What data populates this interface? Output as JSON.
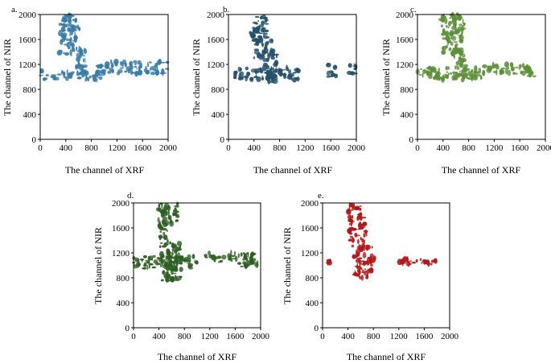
{
  "figure": {
    "panels": [
      {
        "panel_label": "a.",
        "color": "#3a7ca5",
        "chart_data": {
          "type": "heatmap",
          "title": "a.",
          "xlabel": "The channel of XRF",
          "ylabel": "The channel of NIR",
          "xlim": [
            0,
            2000
          ],
          "ylim": [
            0,
            2000
          ],
          "xticks": [
            0,
            400,
            800,
            1200,
            1600,
            2000
          ],
          "yticks": [
            0,
            400,
            800,
            1200,
            1600,
            2000
          ],
          "regions": [
            {
              "x": [
                280,
                620
              ],
              "y": [
                1700,
                2000
              ]
            },
            {
              "x": [
                300,
                560
              ],
              "y": [
                1350,
                1700
              ]
            },
            {
              "x": [
                560,
                740
              ],
              "y": [
                1000,
                1500
              ]
            },
            {
              "x": [
                0,
                1000
              ],
              "y": [
                950,
                1100
              ]
            },
            {
              "x": [
                900,
                1900
              ],
              "y": [
                1050,
                1250
              ]
            },
            {
              "x": [
                1900,
                2000
              ],
              "y": [
                1050,
                1250
              ]
            }
          ]
        }
      },
      {
        "panel_label": "b.",
        "color": "#24506a",
        "chart_data": {
          "type": "heatmap",
          "title": "b.",
          "xlabel": "The channel of XRF",
          "ylabel": "The channel of NIR",
          "xlim": [
            0,
            2000
          ],
          "ylim": [
            0,
            2000
          ],
          "xticks": [
            0,
            400,
            800,
            1200,
            1600,
            2000
          ],
          "yticks": [
            0,
            400,
            800,
            1200,
            1600,
            2000
          ],
          "regions": [
            {
              "x": [
                340,
                600
              ],
              "y": [
                1650,
                2000
              ]
            },
            {
              "x": [
                400,
                700
              ],
              "y": [
                1300,
                1650
              ]
            },
            {
              "x": [
                560,
                760
              ],
              "y": [
                900,
                1450
              ]
            },
            {
              "x": [
                100,
                1100
              ],
              "y": [
                950,
                1150
              ]
            },
            {
              "x": [
                1550,
                1700
              ],
              "y": [
                1000,
                1200
              ]
            },
            {
              "x": [
                1850,
                2000
              ],
              "y": [
                1050,
                1200
              ]
            }
          ]
        }
      },
      {
        "panel_label": "c.",
        "color": "#5e8f3a",
        "chart_data": {
          "type": "heatmap",
          "title": "c.",
          "xlabel": "The channel of XRF",
          "ylabel": "The channel of NIR",
          "xlim": [
            0,
            2000
          ],
          "ylim": [
            0,
            2000
          ],
          "xticks": [
            0,
            400,
            800,
            1200,
            1600,
            2000
          ],
          "yticks": [
            0,
            400,
            800,
            1200,
            1600,
            2000
          ],
          "regions": [
            {
              "x": [
                360,
                740
              ],
              "y": [
                1700,
                2000
              ]
            },
            {
              "x": [
                400,
                700
              ],
              "y": [
                1350,
                1700
              ]
            },
            {
              "x": [
                560,
                760
              ],
              "y": [
                950,
                1450
              ]
            },
            {
              "x": [
                0,
                1000
              ],
              "y": [
                950,
                1150
              ]
            },
            {
              "x": [
                1000,
                1750
              ],
              "y": [
                1050,
                1200
              ]
            },
            {
              "x": [
                1700,
                1850
              ],
              "y": [
                1000,
                1150
              ]
            }
          ]
        }
      },
      {
        "panel_label": "d.",
        "color": "#2c5e22",
        "chart_data": {
          "type": "heatmap",
          "title": "d.",
          "xlabel": "The channel of XRF",
          "ylabel": "The channel of NIR",
          "xlim": [
            0,
            2000
          ],
          "ylim": [
            0,
            2000
          ],
          "xticks": [
            0,
            400,
            800,
            1200,
            1600,
            2000
          ],
          "yticks": [
            0,
            400,
            800,
            1200,
            1600,
            2000
          ],
          "regions": [
            {
              "x": [
                380,
                700
              ],
              "y": [
                1700,
                2000
              ]
            },
            {
              "x": [
                400,
                600
              ],
              "y": [
                1300,
                1700
              ]
            },
            {
              "x": [
                440,
                760
              ],
              "y": [
                750,
                1350
              ]
            },
            {
              "x": [
                0,
                1000
              ],
              "y": [
                950,
                1150
              ]
            },
            {
              "x": [
                1100,
                1900
              ],
              "y": [
                1050,
                1200
              ]
            },
            {
              "x": [
                1650,
                1950
              ],
              "y": [
                950,
                1100
              ]
            }
          ]
        }
      },
      {
        "panel_label": "e.",
        "color": "#b01818",
        "chart_data": {
          "type": "heatmap",
          "title": "e.",
          "xlabel": "The channel of XRF",
          "ylabel": "The channel of NIR",
          "xlim": [
            0,
            2000
          ],
          "ylim": [
            0,
            2000
          ],
          "xticks": [
            0,
            400,
            800,
            1200,
            1600,
            2000
          ],
          "yticks": [
            0,
            400,
            800,
            1200,
            1600,
            2000
          ],
          "regions": [
            {
              "x": [
                400,
                660
              ],
              "y": [
                1700,
                2000
              ]
            },
            {
              "x": [
                420,
                700
              ],
              "y": [
                1300,
                1700
              ]
            },
            {
              "x": [
                480,
                780
              ],
              "y": [
                800,
                1300
              ]
            },
            {
              "x": [
                700,
                900
              ],
              "y": [
                1000,
                1150
              ]
            },
            {
              "x": [
                80,
                120
              ],
              "y": [
                1020,
                1080
              ]
            },
            {
              "x": [
                1100,
                1800
              ],
              "y": [
                1000,
                1100
              ]
            }
          ]
        }
      }
    ]
  }
}
